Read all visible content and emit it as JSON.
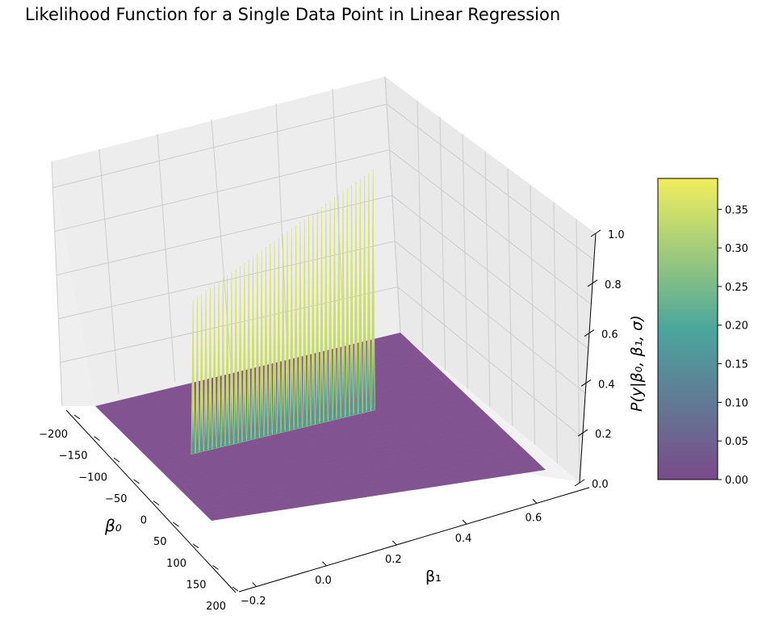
{
  "chart_data": {
    "type": "surface3d",
    "title": "Likelihood Function for a Single Data Point in Linear Regression",
    "xlabel": "β₁",
    "ylabel": "β₀",
    "zlabel": "P(y|β₀, β₁, σ)",
    "x_ticks": [
      "−0.2",
      "0.0",
      "0.2",
      "0.4",
      "0.6"
    ],
    "x_tick_values": [
      -0.2,
      0.0,
      0.2,
      0.4,
      0.6
    ],
    "xlim": [
      -0.25,
      0.75
    ],
    "y_ticks": [
      "−200",
      "−150",
      "−100",
      "−50",
      "0",
      "50",
      "100",
      "150",
      "200"
    ],
    "y_tick_values": [
      -200,
      -150,
      -100,
      -50,
      0,
      50,
      100,
      150,
      200
    ],
    "ylim": [
      -200,
      200
    ],
    "z_ticks": [
      "0.0",
      "0.2",
      "0.4",
      "0.6",
      "0.8",
      "1.0"
    ],
    "z_tick_values": [
      0.0,
      0.2,
      0.4,
      0.6,
      0.8,
      1.0
    ],
    "zlim": [
      0.0,
      1.0
    ],
    "ridge_count": 43,
    "ridge_x_range": [
      -0.12,
      0.47
    ],
    "ridge_beta0": 0,
    "ridge_peak_range": [
      0.62,
      0.97
    ],
    "floor_value": 0.0,
    "colormap": "viridis",
    "colorbar": {
      "min": 0.0,
      "max": 0.39,
      "ticks": [
        "0.00",
        "0.05",
        "0.10",
        "0.15",
        "0.20",
        "0.25",
        "0.30",
        "0.35"
      ],
      "tick_values": [
        0.0,
        0.05,
        0.1,
        0.15,
        0.2,
        0.25,
        0.3,
        0.35
      ]
    },
    "colors": {
      "low": "#7b4a8b",
      "mid": "#4aa69c",
      "high": "#f2ee5c",
      "pane": "#f2f2f2",
      "grid": "#cccccc"
    }
  }
}
